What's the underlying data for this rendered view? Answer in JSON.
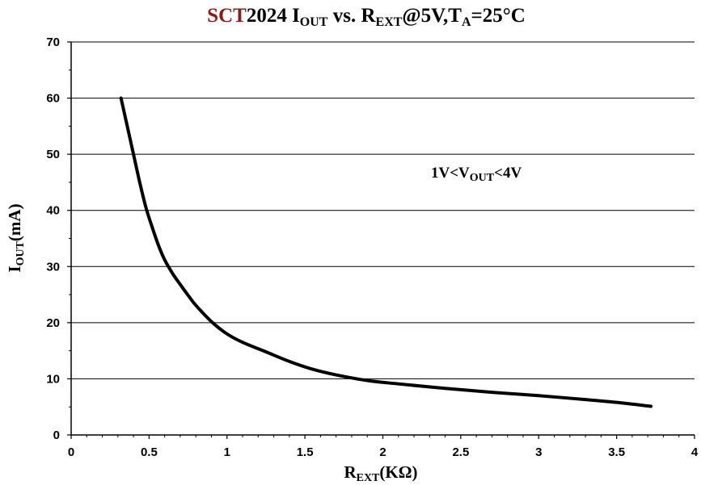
{
  "chart_data": {
    "type": "line",
    "title": {
      "brand": "SCT",
      "model": "2024",
      "part1": " I",
      "part1_sub": "OUT",
      "part2": " vs. R",
      "part2_sub": "EXT",
      "part3": "@5V,T",
      "part3_sub": "A",
      "part4": "=25°C"
    },
    "xlabel": {
      "main": "R",
      "sub": "EXT",
      "rest": "(KΩ)"
    },
    "ylabel": {
      "main": "I",
      "sub": "OUT",
      "rest": "(mA)"
    },
    "annotation": {
      "main": "1V<V",
      "sub": "OUT",
      "rest": "<4V"
    },
    "xlim": [
      0,
      4
    ],
    "ylim": [
      0,
      70
    ],
    "x_ticks": [
      "0",
      "0.5",
      "1",
      "1.5",
      "2",
      "2.5",
      "3",
      "3.5",
      "4"
    ],
    "y_ticks": [
      "0",
      "10",
      "20",
      "30",
      "40",
      "50",
      "60",
      "70"
    ],
    "grid": "horizontal",
    "legend": "none",
    "colors": {
      "brand": "#8b1a1a",
      "line": "#000000",
      "text": "#000000",
      "grid": "#000000"
    },
    "series": [
      {
        "x": [
          0.32,
          0.36,
          0.4,
          0.44,
          0.48,
          0.52,
          0.56,
          0.6,
          0.65,
          0.7,
          0.75,
          0.8,
          0.9,
          1.0,
          1.1,
          1.25,
          1.4,
          1.55,
          1.7,
          1.9,
          2.1,
          2.4,
          2.7,
          3.0,
          3.3,
          3.5,
          3.72
        ],
        "y": [
          60,
          55,
          50,
          45,
          40.5,
          37,
          33.8,
          31.2,
          28.8,
          26.8,
          24.9,
          23.1,
          20.2,
          18.0,
          16.5,
          14.8,
          13.1,
          11.7,
          10.7,
          9.7,
          9.1,
          8.3,
          7.6,
          7.0,
          6.3,
          5.8,
          5.1
        ]
      }
    ]
  }
}
